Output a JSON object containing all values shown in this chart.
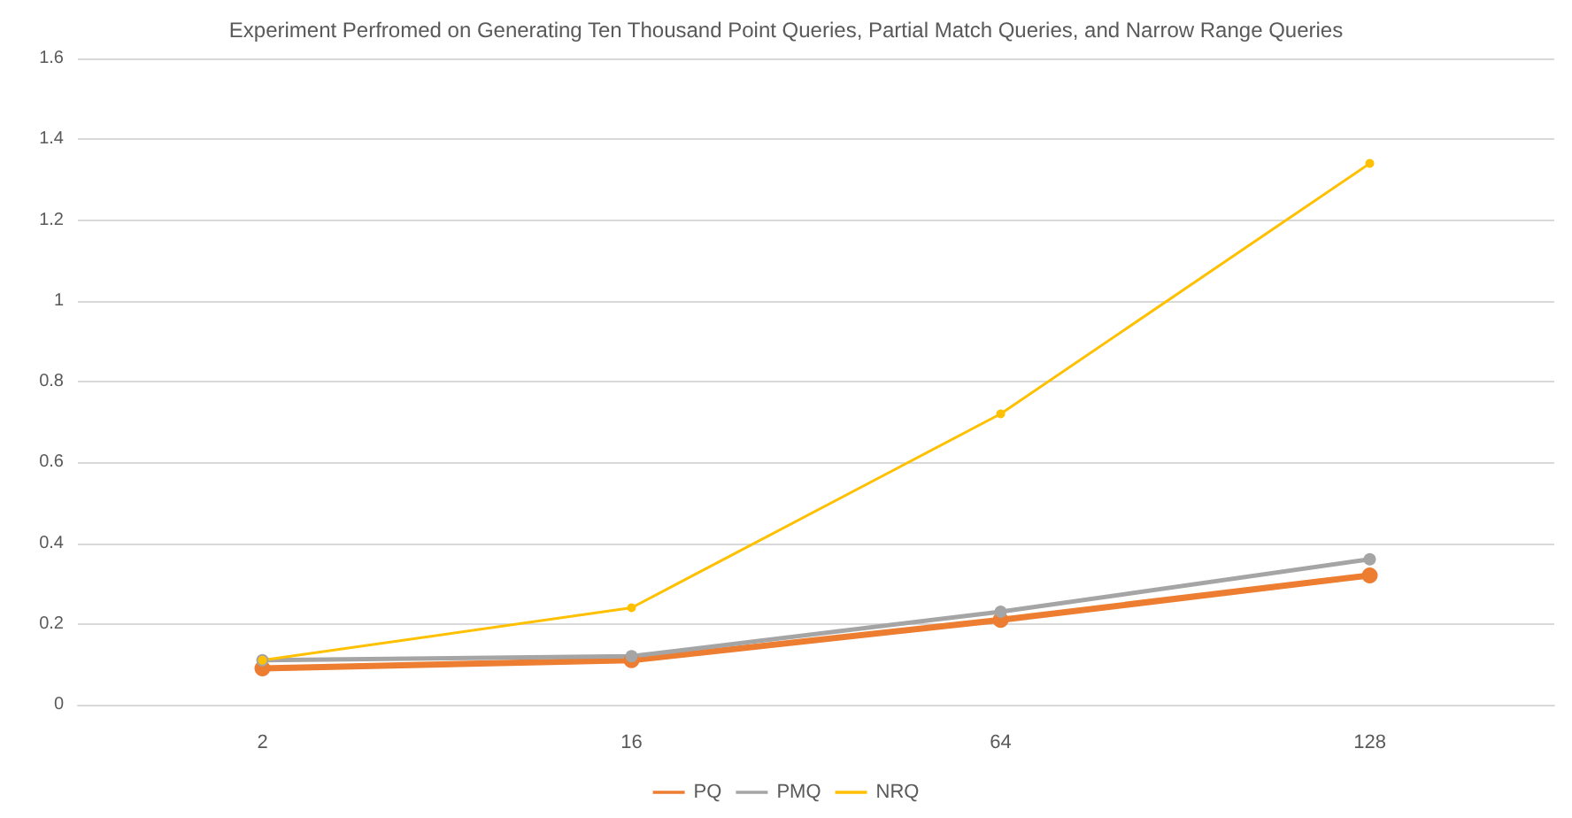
{
  "chart_data": {
    "type": "line",
    "title": "Experiment Perfromed on Generating Ten Thousand Point Queries, Partial Match Queries, and Narrow Range Queries",
    "categories": [
      "2",
      "16",
      "64",
      "128"
    ],
    "series": [
      {
        "name": "PQ",
        "color": "#ed7d31",
        "values": [
          0.09,
          0.11,
          0.21,
          0.32
        ]
      },
      {
        "name": "PMQ",
        "color": "#a5a5a5",
        "values": [
          0.11,
          0.12,
          0.23,
          0.36
        ]
      },
      {
        "name": "NRQ",
        "color": "#ffc000",
        "values": [
          0.11,
          0.24,
          0.72,
          1.34
        ]
      }
    ],
    "ylim": [
      0,
      1.6
    ],
    "yticks": [
      0,
      0.2,
      0.4,
      0.6,
      0.8,
      1,
      1.2,
      1.4,
      1.6
    ],
    "grid": "y",
    "legend": "bottom",
    "marker": "circle",
    "line_style": "solid"
  }
}
